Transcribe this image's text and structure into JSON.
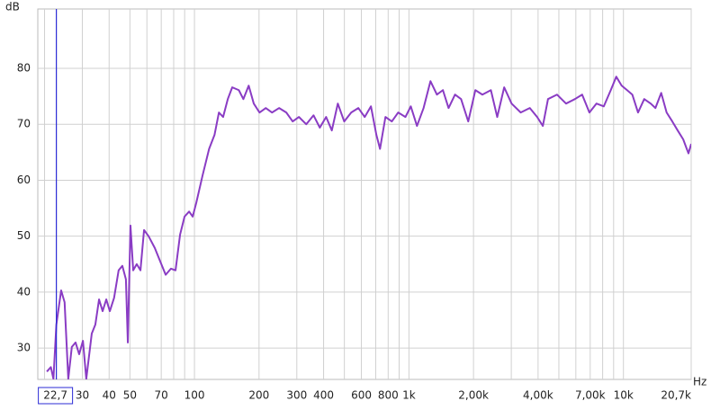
{
  "chart_data": {
    "type": "line",
    "y_label": "dB",
    "x_label": "Hz",
    "xscale": "log",
    "grid": true,
    "xlim": [
      18.6,
      20700
    ],
    "ylim": [
      24.4,
      90.6
    ],
    "yticks": [
      30,
      40,
      50,
      60,
      70,
      80
    ],
    "xticks": [
      30,
      40,
      50,
      70,
      100,
      200,
      300,
      400,
      600,
      800,
      {
        "value": 1000,
        "label": "1k"
      },
      {
        "value": 2000,
        "label": "2,00k"
      },
      {
        "value": 4000,
        "label": "4,00k"
      },
      {
        "value": 7000,
        "label": "7,00k"
      },
      {
        "value": 10000,
        "label": "10k"
      },
      {
        "value": 20700,
        "label": "20,7k"
      }
    ],
    "xgrid_minor": [
      20,
      60,
      80,
      90,
      500,
      700,
      900,
      3000,
      5000,
      6000,
      8000,
      9000
    ],
    "cursor": {
      "value": 22.7,
      "label": "22,7",
      "color": "#2b2bd6"
    },
    "series": [
      {
        "color": "#8a3cc4",
        "x": [
          20.5,
          21.4,
          22.0,
          22.7,
          23.9,
          24.8,
          25.8,
          26.8,
          27.9,
          29.0,
          30.2,
          31.3,
          33.2,
          34.5,
          35.9,
          37.3,
          38.8,
          40.3,
          42.2,
          44.3,
          46.1,
          47.9,
          48.9,
          50.3,
          51.8,
          53.8,
          56,
          58.2,
          61.1,
          65.3,
          69.2,
          73.4,
          77.7,
          81.6,
          85.7,
          89.9,
          94.4,
          98.1,
          102,
          109,
          117,
          124,
          130,
          136,
          143,
          150,
          161,
          169,
          179,
          189,
          201,
          215,
          230,
          248,
          268,
          287,
          307,
          332,
          359,
          384,
          411,
          437,
          466,
          499,
          538,
          581,
          622,
          665,
          705,
          733,
          777,
          832,
          891,
          963,
          1020,
          1090,
          1170,
          1260,
          1350,
          1440,
          1530,
          1640,
          1750,
          1890,
          2040,
          2200,
          2410,
          2580,
          2780,
          3010,
          3320,
          3660,
          3960,
          4210,
          4450,
          4900,
          5400,
          5940,
          6420,
          6940,
          7490,
          8100,
          8730,
          9260,
          9810,
          10400,
          11000,
          11700,
          12500,
          13400,
          14100,
          15000,
          15900,
          16900,
          17900,
          19000,
          20100,
          20700
        ],
        "values": [
          25.8,
          26.6,
          24.5,
          34.2,
          40.3,
          38.2,
          24.5,
          30.2,
          31,
          28.9,
          31.3,
          24.5,
          32.6,
          34.2,
          38.7,
          36.6,
          38.7,
          36.6,
          39,
          43.9,
          44.7,
          42.3,
          31,
          51.9,
          43.9,
          45,
          43.9,
          51.1,
          50,
          47.9,
          45.5,
          43.1,
          44.2,
          43.9,
          50.3,
          53.5,
          54.4,
          53.5,
          56,
          60.8,
          65.6,
          68.1,
          72.1,
          71.3,
          74.5,
          76.6,
          76.1,
          74.5,
          76.9,
          73.7,
          72.1,
          72.9,
          72.1,
          72.9,
          72.1,
          70.5,
          71.3,
          70,
          71.6,
          69.4,
          71.3,
          68.9,
          73.7,
          70.5,
          72.1,
          72.9,
          71.3,
          73.2,
          68.1,
          65.6,
          71.3,
          70.5,
          72.1,
          71.3,
          73.2,
          69.7,
          72.9,
          77.7,
          75.3,
          76.1,
          72.9,
          75.3,
          74.5,
          70.5,
          76.1,
          75.3,
          76.1,
          71.3,
          76.6,
          73.7,
          72.1,
          72.9,
          71.3,
          69.7,
          74.5,
          75.3,
          73.7,
          74.5,
          75.3,
          72.1,
          73.7,
          73.2,
          76.1,
          78.5,
          76.9,
          76.1,
          75.3,
          72.1,
          74.5,
          73.7,
          72.9,
          75.6,
          72.1,
          70.5,
          68.9,
          67.3,
          64.8,
          66.5
        ]
      }
    ]
  }
}
